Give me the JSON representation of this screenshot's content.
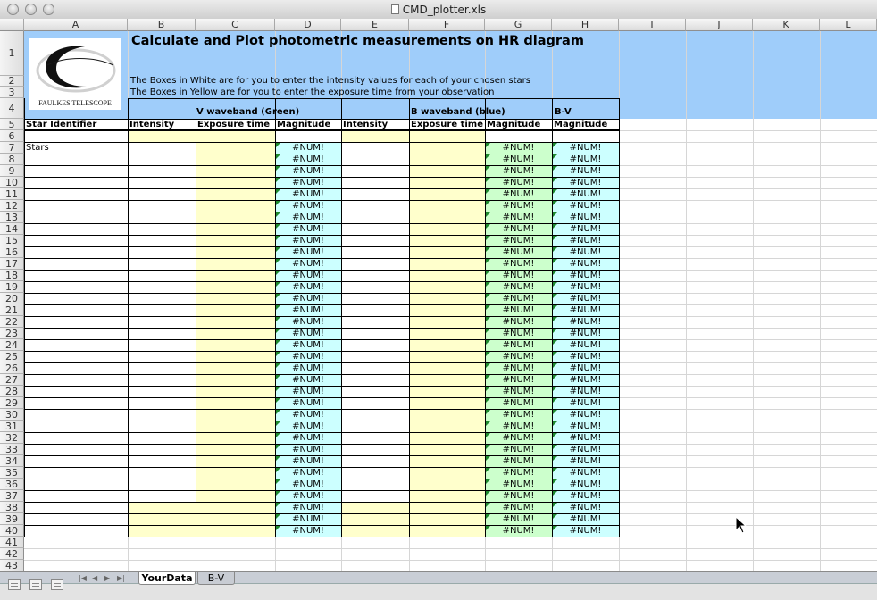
{
  "window": {
    "title": "CMD_plotter.xls"
  },
  "columns": [
    "A",
    "B",
    "C",
    "D",
    "E",
    "F",
    "G",
    "H",
    "I",
    "J",
    "K",
    "L"
  ],
  "rows_start": 1,
  "rows_end": 43,
  "sheet": {
    "title": "Calculate and Plot photometric measurements on HR diagram",
    "instruction_white": "The Boxes in White are for you to enter the intensity values for each of your chosen stars",
    "instruction_yellow": "The Boxes in Yellow are for you to enter the exposure time from your observation",
    "logo_text": "FAULKES TELESCOPE",
    "v_band_label": "V waveband (Green)",
    "b_band_label": "B waveband (blue)",
    "bv_label": "B-V",
    "headers": {
      "star_identifier": "Star Identifier",
      "v_intensity": "Intensity",
      "v_exposure": "Exposure time",
      "v_magnitude": "Magnitude",
      "b_intensity": "Intensity",
      "b_exposure": "Exposure time",
      "b_magnitude": "Magnitude",
      "bv_magnitude": "Magnitude"
    },
    "stars_label": "Stars",
    "error_value": "#NUM!",
    "colors": {
      "header_band": "#9fcdfa",
      "yellow_input": "#ffffcc",
      "cyan_result": "#ccffff",
      "green_result": "#ccffcc"
    }
  },
  "tabs": [
    {
      "label": "YourData",
      "active": true
    },
    {
      "label": "B-V",
      "active": false
    }
  ],
  "nav_icons": [
    "first-sheet-icon",
    "prev-sheet-icon",
    "next-sheet-icon",
    "last-sheet-icon"
  ],
  "view_icons": [
    "normal-view-icon",
    "page-layout-view-icon",
    "page-break-view-icon"
  ]
}
